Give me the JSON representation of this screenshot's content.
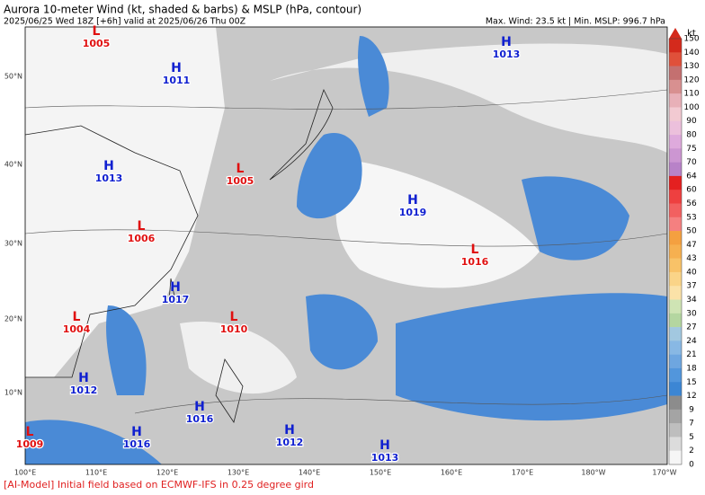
{
  "header": {
    "title": "Aurora 10-meter Wind (kt, shaded & barbs) & MSLP (hPa, contour)",
    "subtitle": "2025/06/25 Wed 18Z [+6h] valid at 2025/06/26 Thu 00Z",
    "stats": "Max. Wind: 23.5 kt | Min. MSLP: 996.7 hPa"
  },
  "map": {
    "lon_labels": [
      "100°E",
      "110°E",
      "120°E",
      "130°E",
      "140°E",
      "150°E",
      "160°E",
      "170°E",
      "180°W",
      "170°W"
    ],
    "lat_labels": [
      "50°N",
      "40°N",
      "30°N",
      "20°N",
      "10°N"
    ],
    "centers": [
      {
        "type": "L",
        "pressure": "1005"
      },
      {
        "type": "H",
        "pressure": "1011"
      },
      {
        "type": "H",
        "pressure": "1013"
      },
      {
        "type": "H",
        "pressure": "1013"
      },
      {
        "type": "L",
        "pressure": "1005"
      },
      {
        "type": "L",
        "pressure": "1006"
      },
      {
        "type": "H",
        "pressure": "1019"
      },
      {
        "type": "L",
        "pressure": "1016"
      },
      {
        "type": "H",
        "pressure": "1017"
      },
      {
        "type": "L",
        "pressure": "1004"
      },
      {
        "type": "L",
        "pressure": "1010"
      },
      {
        "type": "H",
        "pressure": "1012"
      },
      {
        "type": "H",
        "pressure": "1016"
      },
      {
        "type": "L",
        "pressure": "1009"
      },
      {
        "type": "H",
        "pressure": "1016"
      },
      {
        "type": "H",
        "pressure": "1012"
      },
      {
        "type": "H",
        "pressure": "1013"
      }
    ]
  },
  "colorbar": {
    "unit": "kt",
    "levels": [
      150,
      140,
      130,
      120,
      110,
      100,
      90,
      80,
      75,
      70,
      64,
      60,
      56,
      53,
      50,
      47,
      43,
      40,
      37,
      34,
      30,
      27,
      24,
      21,
      18,
      15,
      12,
      9,
      7,
      5,
      2,
      0
    ],
    "colors": [
      "#d42a1c",
      "#e0503a",
      "#c47070",
      "#d89090",
      "#e8b0b8",
      "#f2cad2",
      "#ecc0dc",
      "#deaadc",
      "#cc96d2",
      "#b882c8",
      "#e42020",
      "#ee4040",
      "#f26060",
      "#f58080",
      "#f4a040",
      "#f6b050",
      "#f8c268",
      "#fad488",
      "#fbe2a8",
      "#cfe4b4",
      "#b4d6a0",
      "#a2c8e0",
      "#88b8e4",
      "#6ea6e0",
      "#5296dc",
      "#3c86d4",
      "#8c8c8c",
      "#a4a4a4",
      "#bebebe",
      "#dcdcdc",
      "#f6f6f6"
    ]
  },
  "footer": "[AI-Model] Initial field based on ECMWF-IFS in 0.25 degree gird"
}
